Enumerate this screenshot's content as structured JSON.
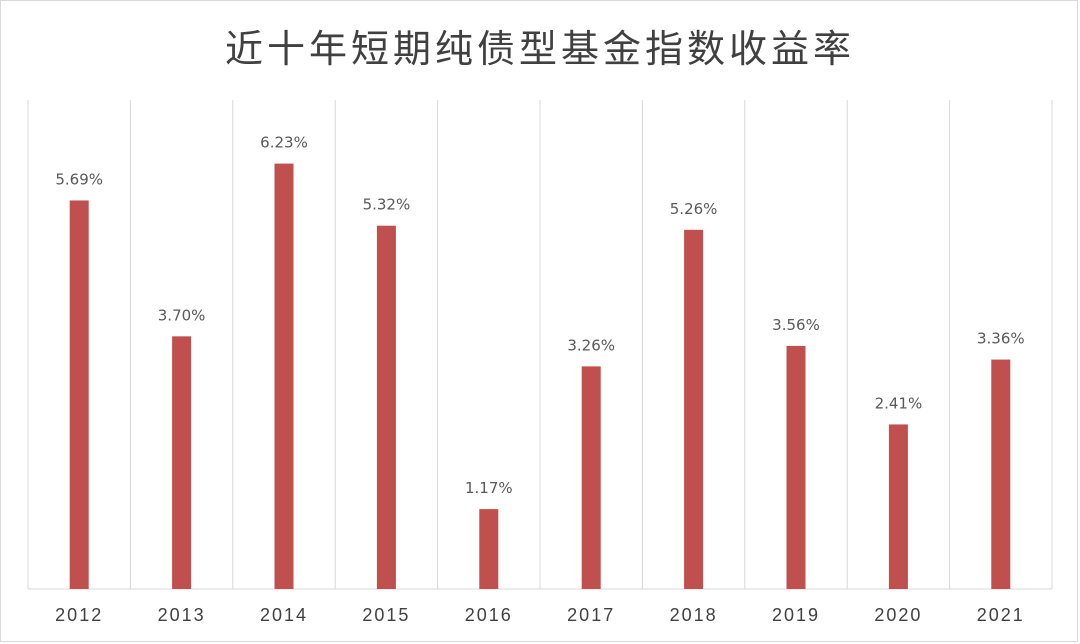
{
  "chart_data": {
    "type": "bar",
    "title": "近十年短期纯债型基金指数收益率",
    "categories": [
      "2012",
      "2013",
      "2014",
      "2015",
      "2016",
      "2017",
      "2018",
      "2019",
      "2020",
      "2021"
    ],
    "values": [
      5.69,
      3.7,
      6.23,
      5.32,
      1.17,
      3.26,
      5.26,
      3.56,
      2.41,
      3.36
    ],
    "value_labels": [
      "5.69%",
      "3.70%",
      "6.23%",
      "5.32%",
      "1.17%",
      "3.26%",
      "5.26%",
      "3.56%",
      "2.41%",
      "3.36%"
    ],
    "xlabel": "",
    "ylabel": "",
    "ylim": [
      0,
      7
    ],
    "grid": "vertical category separators",
    "legend": "none",
    "bar_color": "#c0504d"
  }
}
